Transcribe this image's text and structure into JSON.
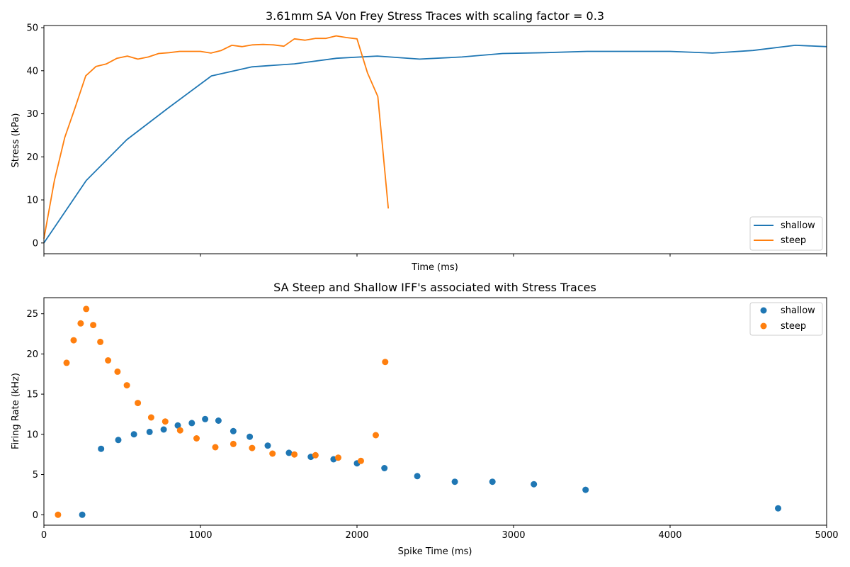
{
  "chart_data": [
    {
      "type": "line",
      "title": "3.61mm SA Von Frey Stress Traces with scaling factor = 0.3",
      "xlabel": "Time (ms)",
      "ylabel": "Stress (kPa)",
      "xlim": [
        0,
        5000
      ],
      "ylim": [
        -2.5,
        50.5
      ],
      "xticks": [
        0,
        1000,
        2000,
        3000,
        4000,
        5000
      ],
      "xtick_labels_shown": false,
      "yticks": [
        0,
        10,
        20,
        30,
        40,
        50
      ],
      "grid": false,
      "legend": "lower-right",
      "series": [
        {
          "name": "shallow",
          "color": "#1f77b4",
          "x": [
            0,
            270,
            530,
            800,
            1070,
            1330,
            1600,
            1870,
            2130,
            2400,
            2670,
            2930,
            3200,
            3470,
            3730,
            4000,
            4270,
            4530,
            4800,
            5000
          ],
          "y": [
            0,
            14.5,
            24,
            31.5,
            38.8,
            40.9,
            41.6,
            42.9,
            43.4,
            42.7,
            43.2,
            44.0,
            44.2,
            44.5,
            44.5,
            44.5,
            44.1,
            44.7,
            45.9,
            45.6
          ]
        },
        {
          "name": "steep",
          "color": "#ff7f0e",
          "x": [
            0,
            67,
            133,
            200,
            267,
            333,
            400,
            467,
            533,
            600,
            667,
            733,
            800,
            867,
            933,
            1000,
            1067,
            1133,
            1200,
            1267,
            1333,
            1400,
            1467,
            1533,
            1600,
            1667,
            1733,
            1800,
            1867,
            1933,
            2000,
            2067,
            2133,
            2200
          ],
          "y": [
            1,
            14.5,
            24.5,
            31.5,
            38.8,
            41.0,
            41.6,
            42.9,
            43.4,
            42.7,
            43.2,
            44.0,
            44.2,
            44.5,
            44.5,
            44.5,
            44.1,
            44.7,
            45.9,
            45.6,
            46.0,
            46.1,
            46.0,
            45.7,
            47.4,
            47.1,
            47.5,
            47.5,
            48.1,
            47.7,
            47.4,
            39.5,
            34.0,
            8.0
          ]
        }
      ]
    },
    {
      "type": "scatter",
      "title": "SA Steep and Shallow IFF's associated with Stress Traces",
      "xlabel": "Spike Time (ms)",
      "ylabel": "Firing Rate (kHz)",
      "xlim": [
        0,
        5000
      ],
      "ylim": [
        -1.3,
        27
      ],
      "xticks": [
        0,
        1000,
        2000,
        3000,
        4000,
        5000
      ],
      "yticks": [
        0,
        5,
        10,
        15,
        20,
        25
      ],
      "grid": false,
      "legend": "top-right",
      "series": [
        {
          "name": "shallow",
          "color": "#1f77b4",
          "x": [
            245,
            365,
            475,
            575,
            675,
            765,
            855,
            945,
            1030,
            1115,
            1210,
            1315,
            1430,
            1565,
            1705,
            1850,
            2000,
            2175,
            2385,
            2625,
            2865,
            3130,
            3460,
            4690
          ],
          "y": [
            0,
            8.2,
            9.3,
            10.0,
            10.3,
            10.6,
            11.1,
            11.4,
            11.9,
            11.7,
            10.4,
            9.7,
            8.6,
            7.7,
            7.2,
            6.9,
            6.4,
            5.8,
            4.8,
            4.1,
            4.1,
            3.8,
            3.1,
            0.8
          ]
        },
        {
          "name": "steep",
          "color": "#ff7f0e",
          "x": [
            90,
            145,
            190,
            235,
            270,
            315,
            360,
            410,
            470,
            530,
            600,
            685,
            775,
            870,
            975,
            1095,
            1210,
            1330,
            1460,
            1600,
            1735,
            1880,
            2025,
            2120,
            2180
          ],
          "y": [
            0,
            18.9,
            21.7,
            23.8,
            25.6,
            23.6,
            21.5,
            19.2,
            17.8,
            16.1,
            13.9,
            12.1,
            11.6,
            10.5,
            9.5,
            8.4,
            8.8,
            8.3,
            7.6,
            7.5,
            7.4,
            7.1,
            6.7,
            9.9,
            19.0
          ]
        }
      ]
    }
  ]
}
